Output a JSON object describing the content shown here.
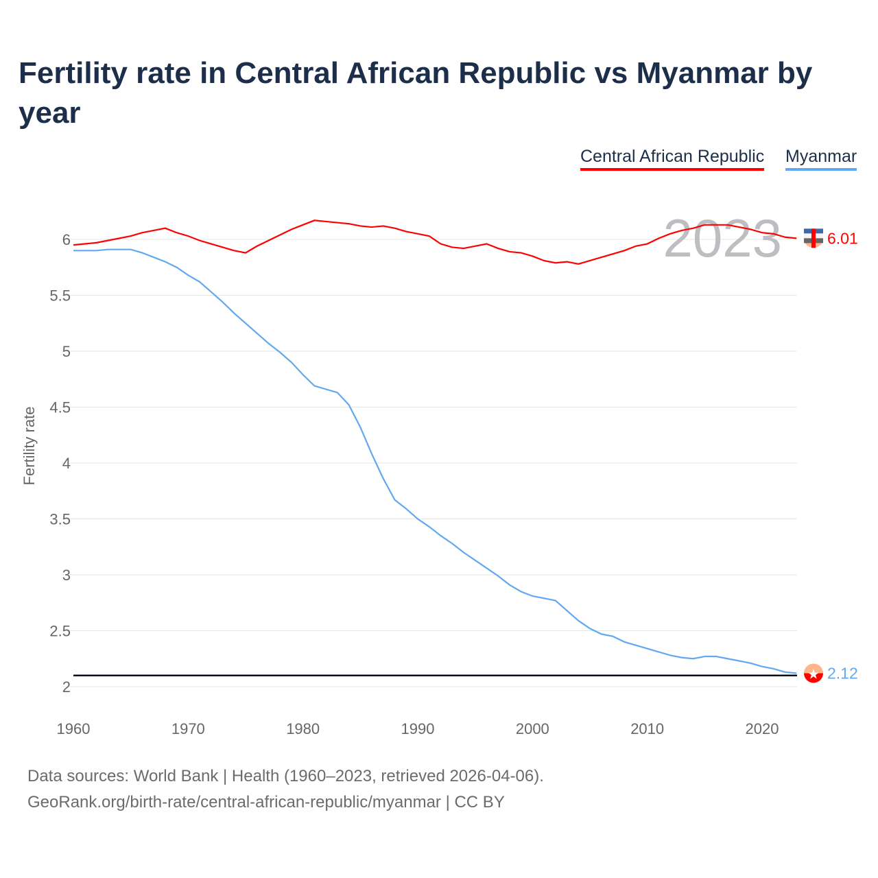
{
  "chart_data": {
    "type": "line",
    "title": "Fertility rate in Central African Republic vs Myanmar by year",
    "xlabel": "",
    "ylabel": "Fertility rate",
    "xlim": [
      1960,
      2023
    ],
    "ylim": [
      2,
      6.3
    ],
    "x_ticks": [
      "1960",
      "1970",
      "1980",
      "1990",
      "2000",
      "2010",
      "2020"
    ],
    "y_ticks": [
      "2",
      "2.5",
      "3",
      "3.5",
      "4",
      "4.5",
      "5",
      "5.5",
      "6"
    ],
    "legend_position": "top-right",
    "year_overlay": "2023",
    "reference_line": 2.1,
    "x": [
      1960,
      1961,
      1962,
      1963,
      1964,
      1965,
      1966,
      1967,
      1968,
      1969,
      1970,
      1971,
      1972,
      1973,
      1974,
      1975,
      1976,
      1977,
      1978,
      1979,
      1980,
      1981,
      1982,
      1983,
      1984,
      1985,
      1986,
      1987,
      1988,
      1989,
      1990,
      1991,
      1992,
      1993,
      1994,
      1995,
      1996,
      1997,
      1998,
      1999,
      2000,
      2001,
      2002,
      2003,
      2004,
      2005,
      2006,
      2007,
      2008,
      2009,
      2010,
      2011,
      2012,
      2013,
      2014,
      2015,
      2016,
      2017,
      2018,
      2019,
      2020,
      2021,
      2022,
      2023
    ],
    "series": [
      {
        "name": "Central African Republic",
        "color": "#ff0000",
        "end_label": "6.01",
        "values": [
          5.95,
          5.96,
          5.97,
          5.99,
          6.01,
          6.03,
          6.06,
          6.08,
          6.1,
          6.06,
          6.03,
          5.99,
          5.96,
          5.93,
          5.9,
          5.88,
          5.94,
          5.99,
          6.04,
          6.09,
          6.13,
          6.17,
          6.16,
          6.15,
          6.14,
          6.12,
          6.11,
          6.12,
          6.1,
          6.07,
          6.05,
          6.03,
          5.96,
          5.93,
          5.92,
          5.94,
          5.96,
          5.92,
          5.89,
          5.88,
          5.85,
          5.81,
          5.79,
          5.8,
          5.78,
          5.81,
          5.84,
          5.87,
          5.9,
          5.94,
          5.96,
          6.01,
          6.05,
          6.08,
          6.1,
          6.13,
          6.13,
          6.13,
          6.11,
          6.09,
          6.06,
          6.05,
          6.02,
          6.01
        ]
      },
      {
        "name": "Myanmar",
        "color": "#62a8f0",
        "end_label": "2.12",
        "values": [
          5.9,
          5.9,
          5.9,
          5.91,
          5.91,
          5.91,
          5.88,
          5.84,
          5.8,
          5.75,
          5.68,
          5.62,
          5.53,
          5.44,
          5.34,
          5.25,
          5.16,
          5.07,
          4.99,
          4.9,
          4.79,
          4.69,
          4.66,
          4.63,
          4.52,
          4.32,
          4.08,
          3.86,
          3.67,
          3.59,
          3.5,
          3.43,
          3.35,
          3.28,
          3.2,
          3.13,
          3.06,
          2.99,
          2.91,
          2.85,
          2.81,
          2.79,
          2.77,
          2.68,
          2.59,
          2.52,
          2.47,
          2.45,
          2.4,
          2.37,
          2.34,
          2.31,
          2.28,
          2.26,
          2.25,
          2.27,
          2.27,
          2.25,
          2.23,
          2.21,
          2.18,
          2.16,
          2.13,
          2.12
        ]
      }
    ]
  },
  "footer": {
    "line1": "Data sources: World Bank | Health (1960–2023, retrieved 2026-04-06).",
    "line2": "GeoRank.org/birth-rate/central-african-republic/myanmar | CC BY"
  }
}
